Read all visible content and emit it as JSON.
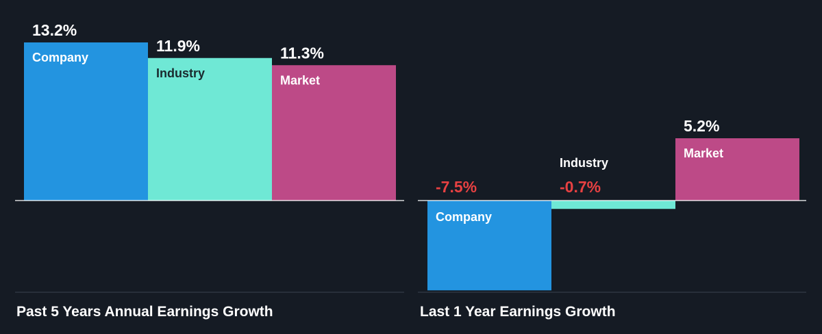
{
  "colors": {
    "background": "#151b24",
    "Company": "#2394e0",
    "Industry": "#6fe8d5",
    "Market": "#bd4a87",
    "positive_label": "#ffffff",
    "negative_label": "#e84142",
    "axis": "#ffffff",
    "baseline": "#3a4350"
  },
  "chart_data": [
    {
      "type": "bar",
      "title": "Past 5 Years Annual Earnings Growth",
      "categories": [
        "Company",
        "Industry",
        "Market"
      ],
      "values": [
        13.2,
        11.9,
        11.3
      ],
      "value_labels": [
        "13.2%",
        "11.9%",
        "11.3%"
      ],
      "unit": "%"
    },
    {
      "type": "bar",
      "title": "Last 1 Year Earnings Growth",
      "categories": [
        "Company",
        "Industry",
        "Market"
      ],
      "values": [
        -7.5,
        -0.7,
        5.2
      ],
      "value_labels": [
        "-7.5%",
        "-0.7%",
        "5.2%"
      ],
      "unit": "%"
    }
  ]
}
